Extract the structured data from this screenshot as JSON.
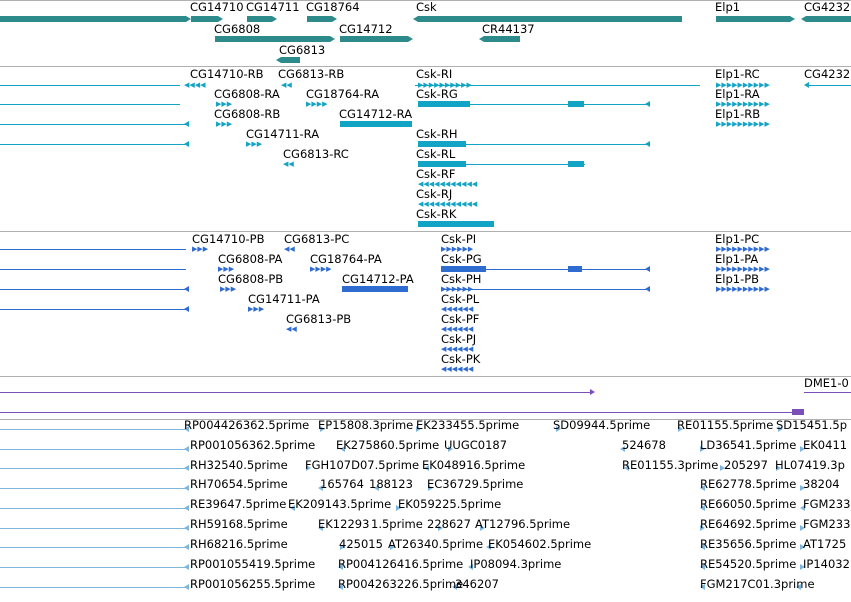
{
  "colors": {
    "gene": "#2e8b8b",
    "rna": "#12a4c4",
    "protein": "#2f6cd0",
    "motif": "#7b4fb8",
    "est": "#7fb6dd",
    "track_border": "#b0b0b0"
  },
  "genes": {
    "labels": [
      "CG14710",
      "CG14711",
      "CG18764",
      "Csk",
      "Elp1",
      "CG4232",
      "CG6808",
      "CG14712",
      "CR44137",
      "CG6813"
    ]
  },
  "transcripts": {
    "labels": [
      "CG14710-RB",
      "CG6813-RB",
      "Csk-RI",
      "Elp1-RC",
      "CG4232",
      "CG6808-RA",
      "CG18764-RA",
      "Csk-RG",
      "Elp1-RA",
      "CG6808-RB",
      "CG14712-RA",
      "Elp1-RB",
      "CG14711-RA",
      "Csk-RH",
      "CG6813-RC",
      "Csk-RL",
      "Csk-RF",
      "Csk-RJ",
      "Csk-RK"
    ]
  },
  "proteins": {
    "labels": [
      "CG14710-PB",
      "CG6813-PC",
      "Csk-PI",
      "Elp1-PC",
      "CG6808-PA",
      "CG18764-PA",
      "Csk-PG",
      "Elp1-PA",
      "CG6808-PB",
      "CG14712-PA",
      "Csk-PH",
      "Elp1-PB",
      "CG14711-PA",
      "Csk-PL",
      "CG6813-PB",
      "Csk-PF",
      "Csk-PJ",
      "Csk-PK"
    ]
  },
  "motifs": {
    "labels": [
      "DME1-0"
    ]
  },
  "ests": {
    "labels": [
      "RP004426362.5prime",
      "EP15808.3prime",
      "EK233455.5prime",
      "SD09944.5prime",
      "RE01155.5prime",
      "SD15451.5p",
      "RP001056362.5prime",
      "EK275860.5prime",
      "UUGC0187",
      "524678",
      "LD36541.5prime",
      "EK0411",
      "RH32540.5prime",
      "FGH107D07.5prime",
      "EK048916.5prime",
      "RE01155.3prime",
      "205297",
      "HL07419.3p",
      "RH70654.5prime",
      "165764",
      "188123",
      "EC36729.5prime",
      "RE62778.5prime",
      "38204",
      "RE39647.5prime",
      "EK209143.5prime",
      "EK059225.5prime",
      "RE66050.5prime",
      "FGM233",
      "RH59168.5prime",
      "EK12293",
      "1.5prime",
      "228627",
      "AT12796.5prime",
      "RE64692.5prime",
      "FGM233",
      "RH68216.5prime",
      "425015",
      "AT26340.5prime",
      "EK054602.5prime",
      "RE35656.5prime",
      "AT1725",
      "RP001055419.5prime",
      "RP004126416.5prime",
      "IP08094.3prime",
      "RE54520.5prime",
      "IP14032",
      "RP001056255.5prime",
      "RP004263226.5prime",
      "346207",
      "FGM217C01.3prime"
    ]
  }
}
